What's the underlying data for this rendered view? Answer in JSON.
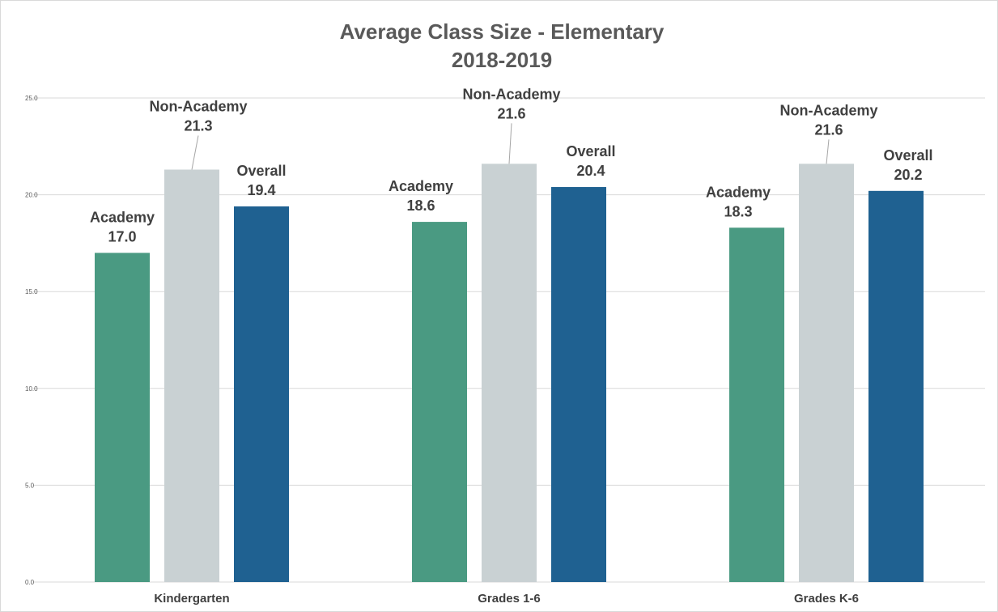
{
  "chart_data": {
    "type": "bar",
    "title": "Average Class Size - Elementary",
    "subtitle": "2018-2019",
    "categories": [
      "Kindergarten",
      "Grades 1-6",
      "Grades K-6"
    ],
    "series": [
      {
        "name": "Academy",
        "values": [
          17.0,
          18.6,
          18.3
        ],
        "color": "#4a9a82"
      },
      {
        "name": "Non-Academy",
        "values": [
          21.3,
          21.6,
          21.6
        ],
        "color": "#c9d1d3"
      },
      {
        "name": "Overall",
        "values": [
          19.4,
          20.4,
          20.2
        ],
        "color": "#1f6191"
      }
    ],
    "data_labels": [
      [
        {
          "name": "Academy",
          "value": "17.0"
        },
        {
          "name": "Non-Academy",
          "value": "21.3"
        },
        {
          "name": "Overall",
          "value": "19.4"
        }
      ],
      [
        {
          "name": "Academy",
          "value": "18.6"
        },
        {
          "name": "Non-Academy",
          "value": "21.6"
        },
        {
          "name": "Overall",
          "value": "20.4"
        }
      ],
      [
        {
          "name": "Academy",
          "value": "18.3"
        },
        {
          "name": "Non-Academy",
          "value": "21.6"
        },
        {
          "name": "Overall",
          "value": "20.2"
        }
      ]
    ],
    "ylim": [
      0,
      25
    ],
    "yticks": [
      "0.0",
      "5.0",
      "10.0",
      "15.0",
      "20.0",
      "25.0"
    ],
    "grid": true,
    "legend": "none",
    "xlabel": "",
    "ylabel": ""
  }
}
